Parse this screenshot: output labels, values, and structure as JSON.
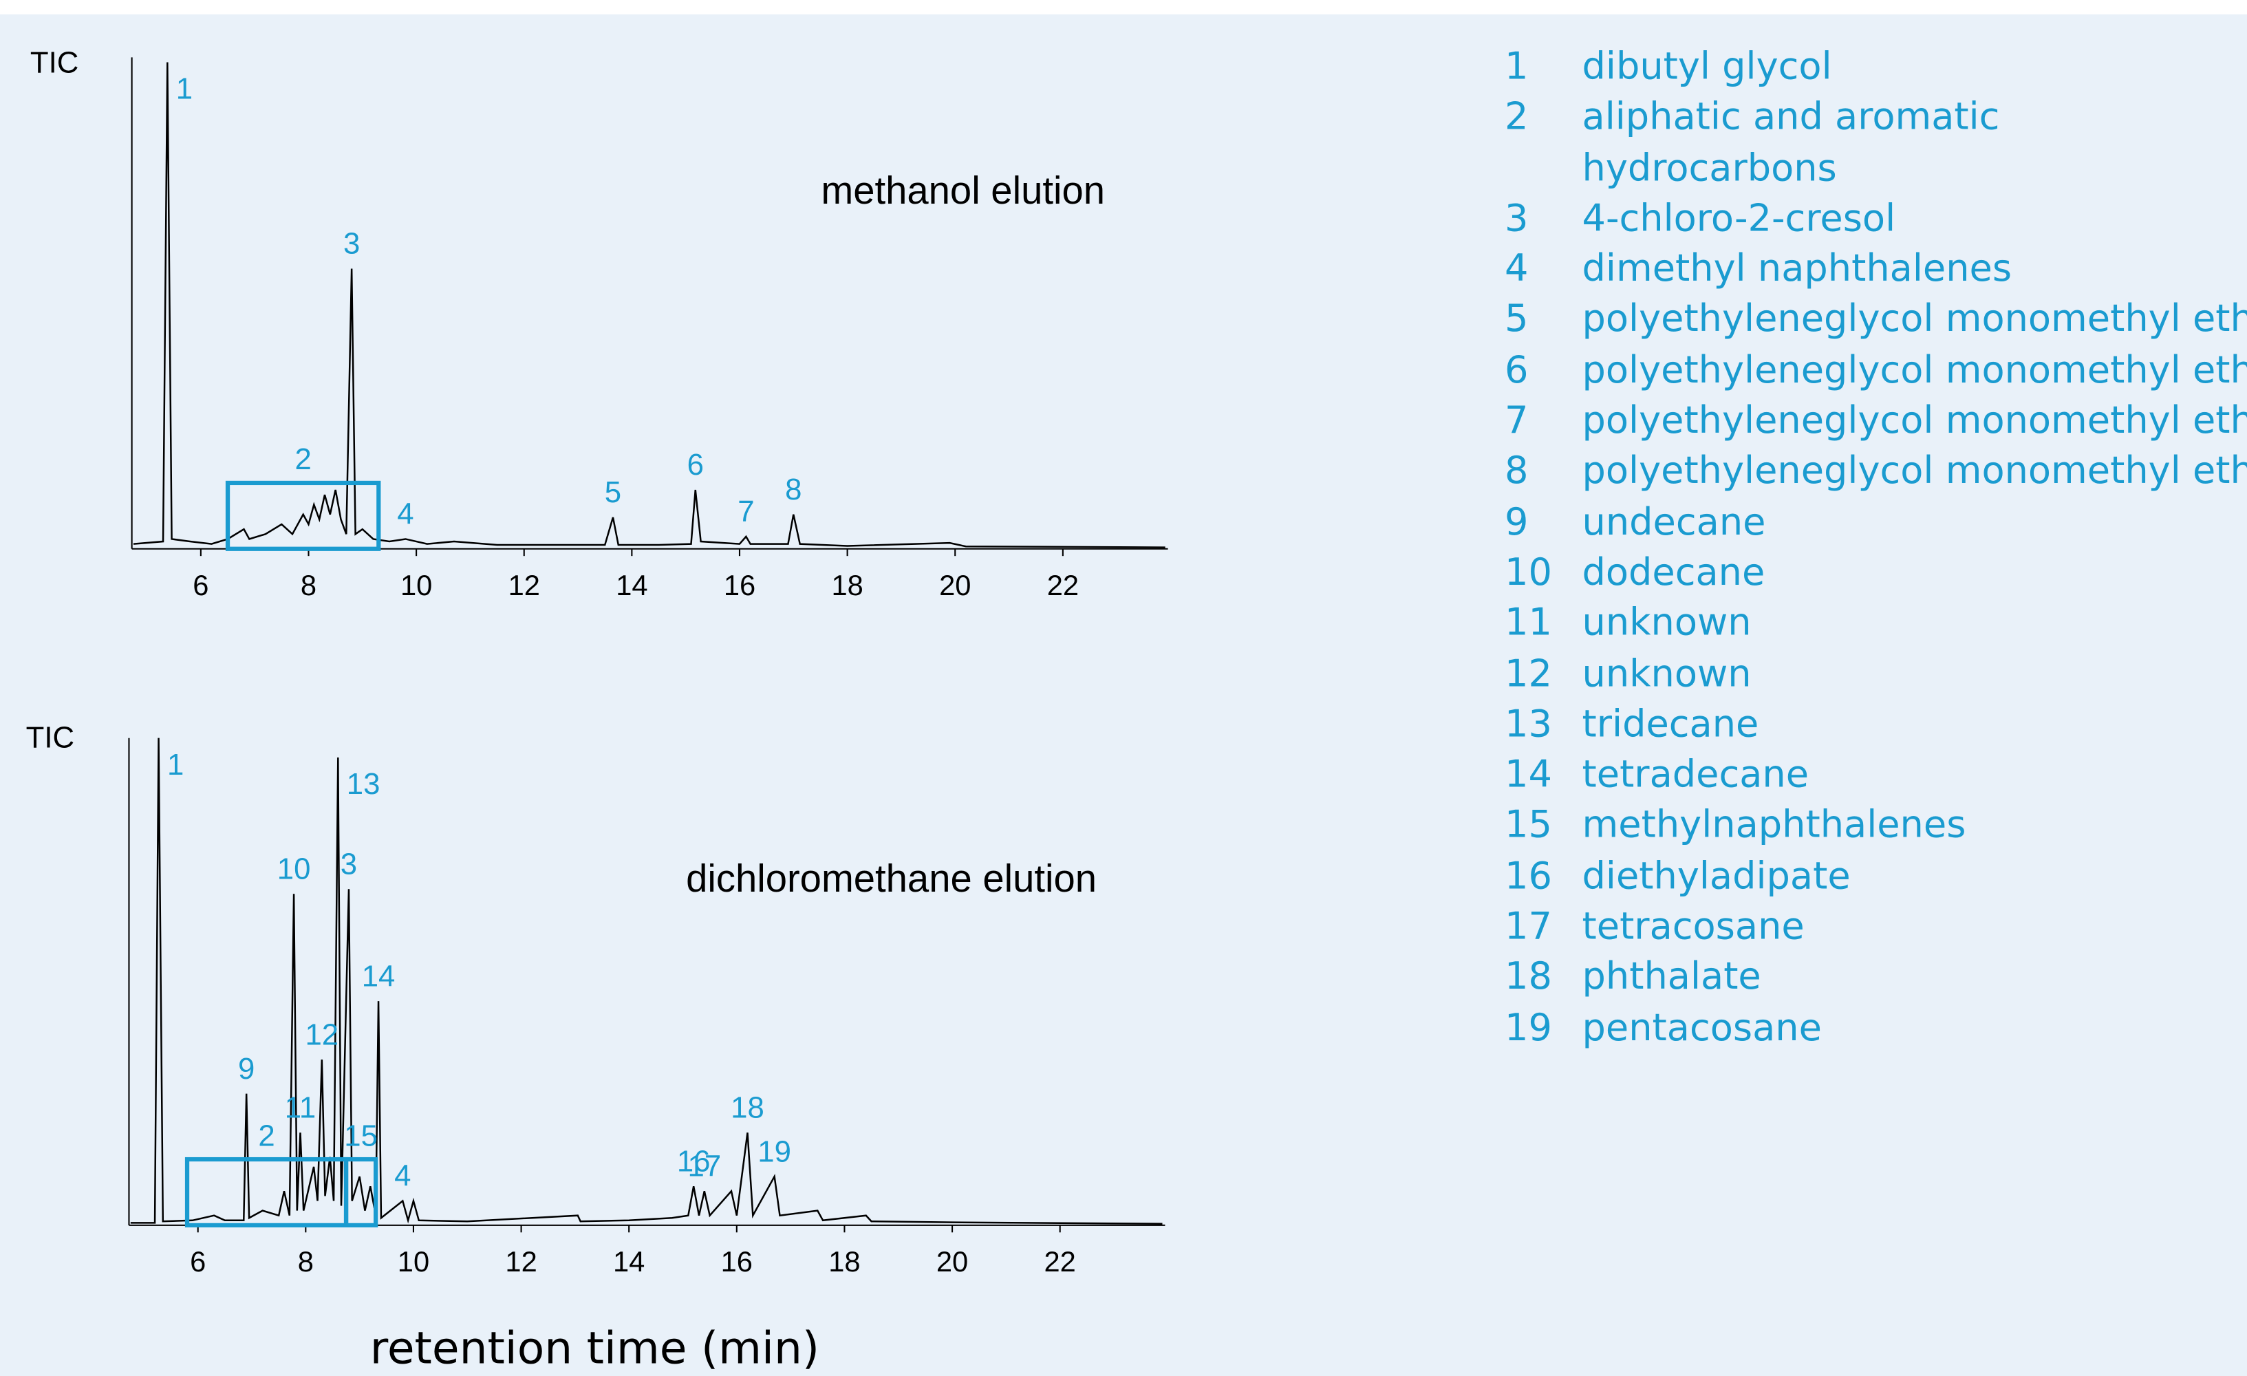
{
  "chart_data": [
    {
      "type": "line",
      "title": "methanol elution",
      "y_label": "TIC",
      "color": "#000000",
      "annotation_color": "#1a9bd0",
      "xlim": [
        4.72,
        23.95
      ],
      "xticks": [
        6,
        8,
        10,
        12,
        14,
        16,
        18,
        20,
        22
      ],
      "ylim": [
        0,
        100
      ],
      "x": [
        4.75,
        5.3,
        5.38,
        5.46,
        5.8,
        6.2,
        6.5,
        6.8,
        6.9,
        7.2,
        7.5,
        7.7,
        7.9,
        8.0,
        8.1,
        8.2,
        8.3,
        8.4,
        8.5,
        8.6,
        8.7,
        8.8,
        8.87,
        9.0,
        9.2,
        9.5,
        9.8,
        10.2,
        10.7,
        11.5,
        12.5,
        13.5,
        13.65,
        13.75,
        14.5,
        15.1,
        15.18,
        15.28,
        16.0,
        16.12,
        16.2,
        16.9,
        17.0,
        17.12,
        18,
        19.9,
        20.2,
        23.9
      ],
      "values": [
        1,
        1.5,
        99,
        2,
        1.5,
        1,
        2,
        4,
        2,
        3,
        5,
        3,
        7,
        5,
        9,
        6,
        11,
        7,
        12,
        6,
        3,
        57,
        3,
        4,
        2,
        1.5,
        2,
        1,
        1.5,
        0.8,
        0.8,
        0.8,
        6.4,
        0.8,
        0.8,
        1,
        12,
        1.5,
        1,
        2.5,
        1,
        1,
        7,
        1,
        0.6,
        1.2,
        0.5,
        0.3
      ],
      "peak_labels": [
        {
          "text": "1",
          "x": 5.38
        },
        {
          "text": "3",
          "x": 8.8
        },
        {
          "text": "4",
          "x": 9.8
        },
        {
          "text": "5",
          "x": 13.65
        },
        {
          "text": "6",
          "x": 15.18
        },
        {
          "text": "7",
          "x": 16.12
        },
        {
          "text": "8",
          "x": 17.0
        }
      ],
      "regions": [
        {
          "text": "2",
          "from": 6.5,
          "to": 9.3
        }
      ]
    },
    {
      "type": "line",
      "title": "dichloromethane elution",
      "y_label": "TIC",
      "x_label": "retention time  (min)",
      "color": "#000000",
      "annotation_color": "#1a9bd0",
      "xlim": [
        4.72,
        23.95
      ],
      "xticks": [
        6,
        8,
        10,
        12,
        14,
        16,
        18,
        20,
        22
      ],
      "ylim": [
        0,
        100
      ],
      "x": [
        4.75,
        5.2,
        5.27,
        5.35,
        5.9,
        6.3,
        6.5,
        6.85,
        6.9,
        6.95,
        7.2,
        7.5,
        7.6,
        7.7,
        7.78,
        7.84,
        7.9,
        7.96,
        8.15,
        8.22,
        8.3,
        8.36,
        8.45,
        8.52,
        8.6,
        8.66,
        8.8,
        8.86,
        9.0,
        9.1,
        9.2,
        9.3,
        9.35,
        9.4,
        9.8,
        9.9,
        10.0,
        10.1,
        11,
        13.05,
        13.1,
        14,
        14.8,
        15.1,
        15.2,
        15.3,
        15.4,
        15.5,
        15.9,
        16.0,
        16.2,
        16.3,
        16.7,
        16.8,
        17.5,
        17.6,
        18.4,
        18.5,
        20,
        23.9
      ],
      "values": [
        0.5,
        0.5,
        100,
        0.8,
        1,
        2,
        1,
        1,
        27,
        1.5,
        3,
        2,
        7,
        2,
        68,
        3,
        19,
        3,
        12,
        5,
        34,
        6,
        14,
        5,
        96,
        4,
        69,
        5,
        10,
        3,
        8,
        2,
        46,
        1.5,
        5,
        1,
        5,
        1,
        0.8,
        2,
        0.8,
        1,
        1.5,
        2,
        8,
        2,
        7,
        2,
        7,
        2,
        19,
        2,
        10,
        2,
        3,
        1,
        2,
        0.8,
        0.6,
        0.3
      ],
      "peak_labels": [
        {
          "text": "1",
          "x": 5.27
        },
        {
          "text": "9",
          "x": 6.9
        },
        {
          "text": "10",
          "x": 7.78
        },
        {
          "text": "11",
          "x": 7.9
        },
        {
          "text": "12",
          "x": 8.3
        },
        {
          "text": "13",
          "x": 8.6
        },
        {
          "text": "3",
          "x": 8.8
        },
        {
          "text": "14",
          "x": 9.35
        },
        {
          "text": "4",
          "x": 9.8
        },
        {
          "text": "16",
          "x": 15.2
        },
        {
          "text": "17",
          "x": 15.4
        },
        {
          "text": "18",
          "x": 16.2
        },
        {
          "text": "19",
          "x": 16.7
        }
      ],
      "regions": [
        {
          "text": "2",
          "from": 5.8,
          "to": 8.75
        },
        {
          "text": "15",
          "from": 8.75,
          "to": 9.3
        }
      ]
    }
  ],
  "legend": {
    "items": [
      {
        "number": "1",
        "lines": [
          "dibutyl glycol"
        ]
      },
      {
        "number": "2",
        "lines": [
          "aliphatic and aromatic",
          "hydrocarbons"
        ]
      },
      {
        "number": "3",
        "lines": [
          "4-chloro-2-cresol"
        ]
      },
      {
        "number": "4",
        "lines": [
          "dimethyl naphthalenes"
        ]
      },
      {
        "number": "5",
        "lines": [
          "polyethyleneglycol monomethyl ether"
        ]
      },
      {
        "number": "6",
        "lines": [
          "polyethyleneglycol monomethyl ether"
        ]
      },
      {
        "number": "7",
        "lines": [
          "polyethyleneglycol monomethyl ether"
        ]
      },
      {
        "number": "8",
        "lines": [
          "polyethyleneglycol monomethyl ether"
        ]
      },
      {
        "number": "9",
        "lines": [
          "undecane"
        ]
      },
      {
        "number": "10",
        "lines": [
          "dodecane"
        ]
      },
      {
        "number": "11",
        "lines": [
          "unknown"
        ]
      },
      {
        "number": "12",
        "lines": [
          "unknown"
        ]
      },
      {
        "number": "13",
        "lines": [
          "tridecane"
        ]
      },
      {
        "number": "14",
        "lines": [
          "tetradecane"
        ]
      },
      {
        "number": "15",
        "lines": [
          "methylnaphthalenes"
        ]
      },
      {
        "number": "16",
        "lines": [
          "diethyladipate"
        ]
      },
      {
        "number": "17",
        "lines": [
          "tetracosane"
        ]
      },
      {
        "number": "18",
        "lines": [
          "phthalate"
        ]
      },
      {
        "number": "19",
        "lines": [
          "pentacosane"
        ]
      }
    ]
  }
}
